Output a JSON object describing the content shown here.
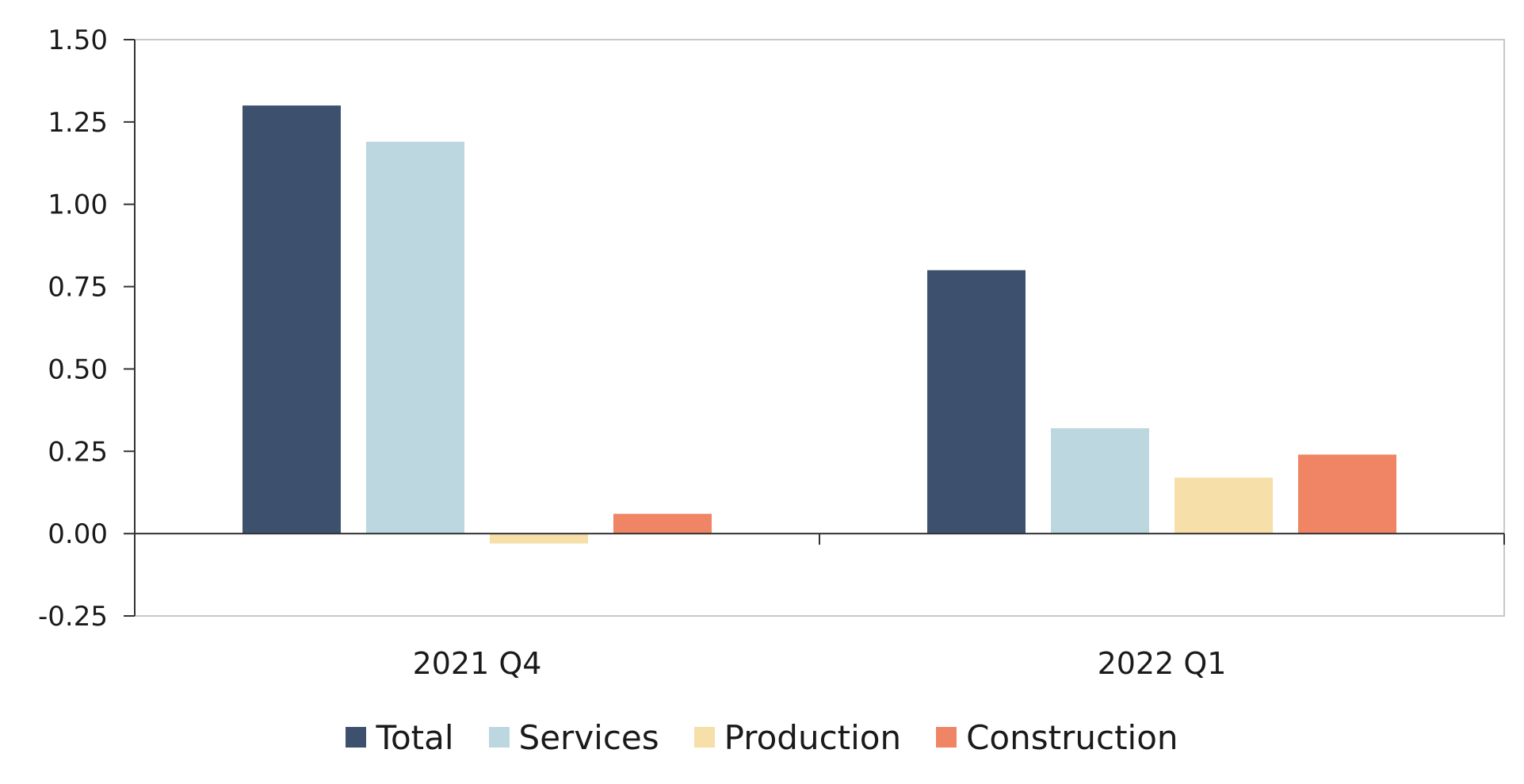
{
  "chart_data": {
    "type": "bar",
    "title": "",
    "xlabel": "",
    "ylabel": "",
    "categories": [
      "2021 Q4",
      "2022 Q1"
    ],
    "series": [
      {
        "name": "Total",
        "color": "#3d516e",
        "values": [
          1.3,
          0.8
        ]
      },
      {
        "name": "Services",
        "color": "#bcd7e0",
        "values": [
          1.19,
          0.32
        ]
      },
      {
        "name": "Production",
        "color": "#f6dfa8",
        "values": [
          -0.03,
          0.17
        ]
      },
      {
        "name": "Construction",
        "color": "#ef8564",
        "values": [
          0.06,
          0.24
        ]
      }
    ],
    "ylim": [
      -0.25,
      1.5
    ],
    "yticks": [
      "1.50",
      "1.25",
      "1.00",
      "0.75",
      "0.50",
      "0.25",
      "0.00",
      "-0.25"
    ],
    "grid": false,
    "legend_position": "bottom"
  }
}
